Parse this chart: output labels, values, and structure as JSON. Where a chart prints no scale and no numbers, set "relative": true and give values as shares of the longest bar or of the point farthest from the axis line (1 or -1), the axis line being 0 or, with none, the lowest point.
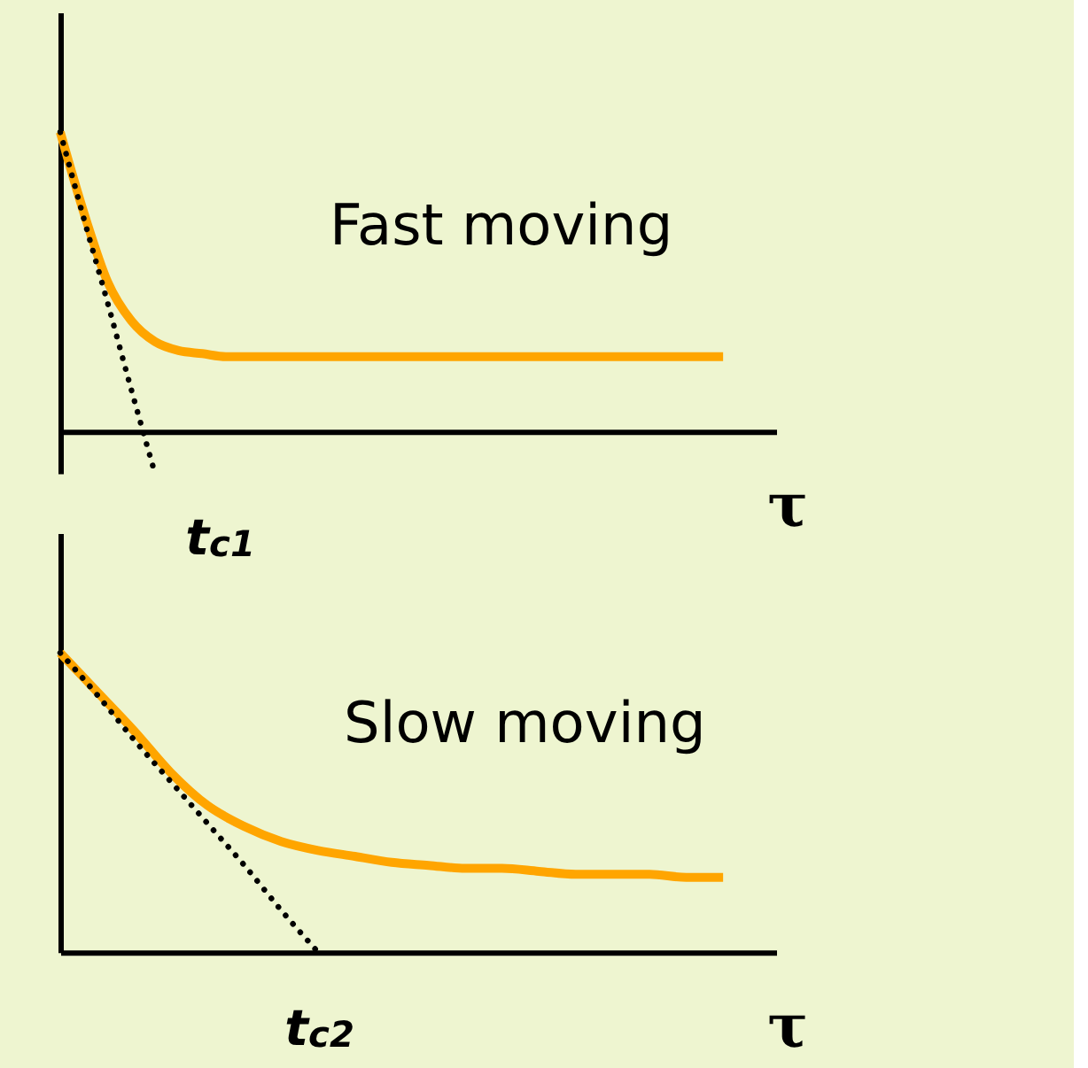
{
  "chart_data": [
    {
      "type": "line",
      "xlabel": "τ",
      "relative": true,
      "tick_labels": false,
      "categories": [
        null,
        null,
        null,
        null,
        null,
        null,
        null,
        null,
        null,
        null,
        null,
        null,
        null,
        null,
        null,
        null,
        null,
        null,
        null,
        null,
        null,
        null,
        null,
        null,
        null,
        null,
        null,
        null,
        null
      ],
      "series": [
        {
          "color": "#ffa500",
          "values": [
            1,
            0.73,
            0.5,
            0.37,
            0.3,
            0.27,
            0.26,
            0.25,
            0.25,
            0.25,
            0.25,
            0.25,
            0.25,
            0.25,
            0.25,
            0.25,
            0.25,
            0.25,
            0.25,
            0.25,
            0.25,
            0.25,
            0.25,
            0.25,
            0.25,
            0.25,
            0.25,
            0.25,
            0.25
          ]
        },
        {
          "type": "line",
          "line_style": "dotted",
          "color": "#000000",
          "values": [
            1,
            0.71,
            0.43,
            0.14,
            -0.14,
            null,
            null,
            null,
            null,
            null,
            null,
            null,
            null,
            null,
            null,
            null,
            null,
            null,
            null,
            null,
            null,
            null,
            null,
            null,
            null,
            null,
            null,
            null,
            null
          ]
        }
      ],
      "annotations": [
        "Fast moving",
        "t$_{c1}$"
      ]
    },
    {
      "type": "line",
      "xlabel": "τ",
      "relative": true,
      "tick_labels": false,
      "categories": [
        null,
        null,
        null,
        null,
        null,
        null,
        null,
        null,
        null,
        null,
        null,
        null,
        null,
        null,
        null,
        null,
        null,
        null,
        null
      ],
      "series": [
        {
          "color": "#ffa500",
          "values": [
            1,
            0.87,
            0.74,
            0.6,
            0.49,
            0.42,
            0.37,
            0.34,
            0.32,
            0.3,
            0.29,
            0.28,
            0.28,
            0.27,
            0.26,
            0.26,
            0.26,
            0.25,
            0.25
          ]
        },
        {
          "type": "line",
          "line_style": "dotted",
          "color": "#000000",
          "values": [
            1,
            0.86,
            0.71,
            0.57,
            0.43,
            0.29,
            0.14,
            0,
            null,
            null,
            null,
            null,
            null,
            null,
            null,
            null,
            null,
            null,
            null
          ]
        }
      ],
      "annotations": [
        "Slow moving",
        "t$_{c2}$"
      ]
    }
  ]
}
